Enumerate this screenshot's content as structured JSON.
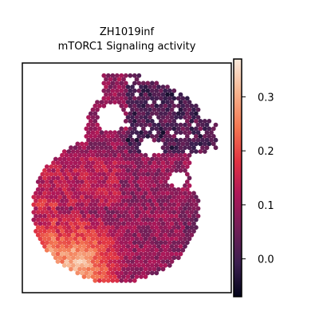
{
  "chart_data": {
    "type": "heatmap",
    "title": "ZH1019inf",
    "subtitle": "mTORC1 Signaling activity",
    "xlabel": "",
    "ylabel": "",
    "colorbar": {
      "range": [
        -0.07,
        0.37
      ],
      "ticks": [
        0.0,
        0.1,
        0.2,
        0.3
      ],
      "tick_labels": [
        "0.0",
        "0.1",
        "0.2",
        "0.3"
      ],
      "colormap": "rocket",
      "colors": [
        "#03051a",
        "#3b1f4f",
        "#701f57",
        "#ad1759",
        "#e13342",
        "#f37651",
        "#f6b48f",
        "#faebdd"
      ]
    },
    "spots": {
      "layout": "hexagonal spatial spot grid (tissue section)",
      "description_values": "per-spot activity score; mostly 0.05–0.15, high (0.25–0.37) at lower-left edge, low (≈0.0) scattered at upper-right"
    },
    "grid": false,
    "legend": "colorbar right"
  }
}
